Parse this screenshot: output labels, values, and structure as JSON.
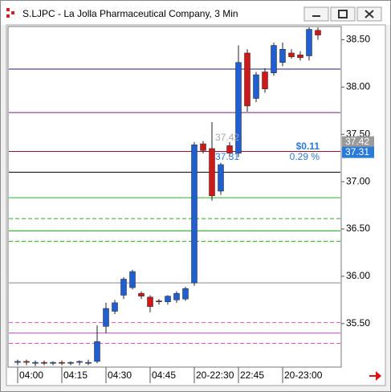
{
  "window_title": "S.LJPC - La Jolla Pharmaceutical Company, 3 Min",
  "chart_data": {
    "type": "candlestick",
    "categories": [
      "04:00",
      null,
      null,
      null,
      null,
      "04:15",
      null,
      null,
      null,
      null,
      "04:30",
      null,
      null,
      null,
      null,
      "04:45",
      null,
      null,
      null,
      null,
      "20-22:30",
      null,
      null,
      null,
      null,
      "22:45",
      null,
      null,
      null,
      null,
      "20-23:00",
      null,
      null,
      null,
      null
    ],
    "open": [
      35.09,
      35.1,
      35.08,
      35.09,
      35.08,
      35.09,
      35.08,
      35.09,
      35.08,
      35.1,
      35.47,
      35.63,
      35.8,
      35.88,
      35.82,
      35.78,
      35.74,
      35.73,
      35.75,
      35.76,
      35.93,
      37.4,
      37.35,
      36.9,
      37.38,
      37.3,
      38.36,
      37.88,
      38.16,
      38.15,
      38.26,
      38.36,
      38.34,
      38.33,
      38.6
    ],
    "high": [
      35.12,
      35.12,
      35.11,
      35.11,
      35.1,
      35.11,
      35.1,
      35.11,
      35.12,
      35.48,
      35.72,
      35.75,
      35.99,
      36.07,
      35.84,
      35.8,
      35.76,
      35.8,
      35.84,
      35.89,
      37.42,
      37.43,
      37.63,
      37.2,
      37.42,
      38.44,
      38.4,
      38.16,
      38.2,
      38.47,
      38.47,
      38.4,
      38.38,
      38.63,
      38.63
    ],
    "low": [
      35.06,
      35.06,
      35.05,
      35.06,
      35.06,
      35.06,
      35.06,
      35.06,
      35.06,
      35.08,
      35.4,
      35.6,
      35.76,
      35.86,
      35.76,
      35.62,
      35.7,
      35.7,
      35.72,
      35.74,
      35.9,
      37.3,
      36.8,
      36.86,
      37.26,
      37.26,
      37.74,
      37.84,
      37.94,
      38.12,
      38.22,
      38.3,
      38.28,
      38.28,
      38.5
    ],
    "close": [
      35.1,
      35.09,
      35.09,
      35.08,
      35.09,
      35.08,
      35.09,
      35.1,
      35.09,
      35.31,
      35.66,
      35.72,
      35.97,
      36.05,
      35.79,
      35.68,
      35.73,
      35.79,
      35.82,
      35.87,
      37.39,
      37.33,
      36.85,
      37.18,
      37.3,
      38.26,
      37.8,
      38.13,
      37.98,
      38.44,
      38.4,
      38.32,
      38.31,
      38.61,
      38.55
    ],
    "up_color": "#1f5fd0",
    "down_color": "#d01818",
    "ylim": [
      35.04,
      38.64
    ],
    "yticks": [
      {
        "value": 35.5,
        "label": "35.50"
      },
      {
        "value": 36,
        "label": "36.00"
      },
      {
        "value": 36.5,
        "label": "36.50"
      },
      {
        "value": 37,
        "label": "37.00"
      },
      {
        "value": 37.5,
        "label": "37.50"
      },
      {
        "value": 38,
        "label": "38.00"
      },
      {
        "value": 38.5,
        "label": "38.50"
      }
    ],
    "levels": [
      {
        "value": 38.19,
        "color": "#1a1a8c"
      },
      {
        "value": 37.73,
        "color": "#7a1a7a"
      },
      {
        "value": 37.32,
        "color": "#9a1030"
      },
      {
        "value": 37.1,
        "color": "#000000"
      },
      {
        "value": 36.83,
        "color": "#22bb22"
      },
      {
        "value": 36.61,
        "color": "#22aa22",
        "dash": true
      },
      {
        "value": 36.48,
        "color": "#11aa11"
      },
      {
        "value": 36.37,
        "color": "#22aa22",
        "dash": true
      },
      {
        "value": 35.93,
        "color": "#888888"
      },
      {
        "value": 35.51,
        "color": "#dd55cc",
        "dash": true
      },
      {
        "value": 35.4,
        "color": "#cc44cc"
      },
      {
        "value": 35.29,
        "color": "#dd55cc",
        "dash": true
      }
    ],
    "markers": [
      {
        "value": 37.42,
        "label": "37.42",
        "color": "#9a9a9a"
      },
      {
        "value": 37.31,
        "label": "37.31",
        "color": "#2a7ad8"
      }
    ],
    "change": {
      "amount": "$0.11",
      "percent": "0.29 %"
    }
  }
}
